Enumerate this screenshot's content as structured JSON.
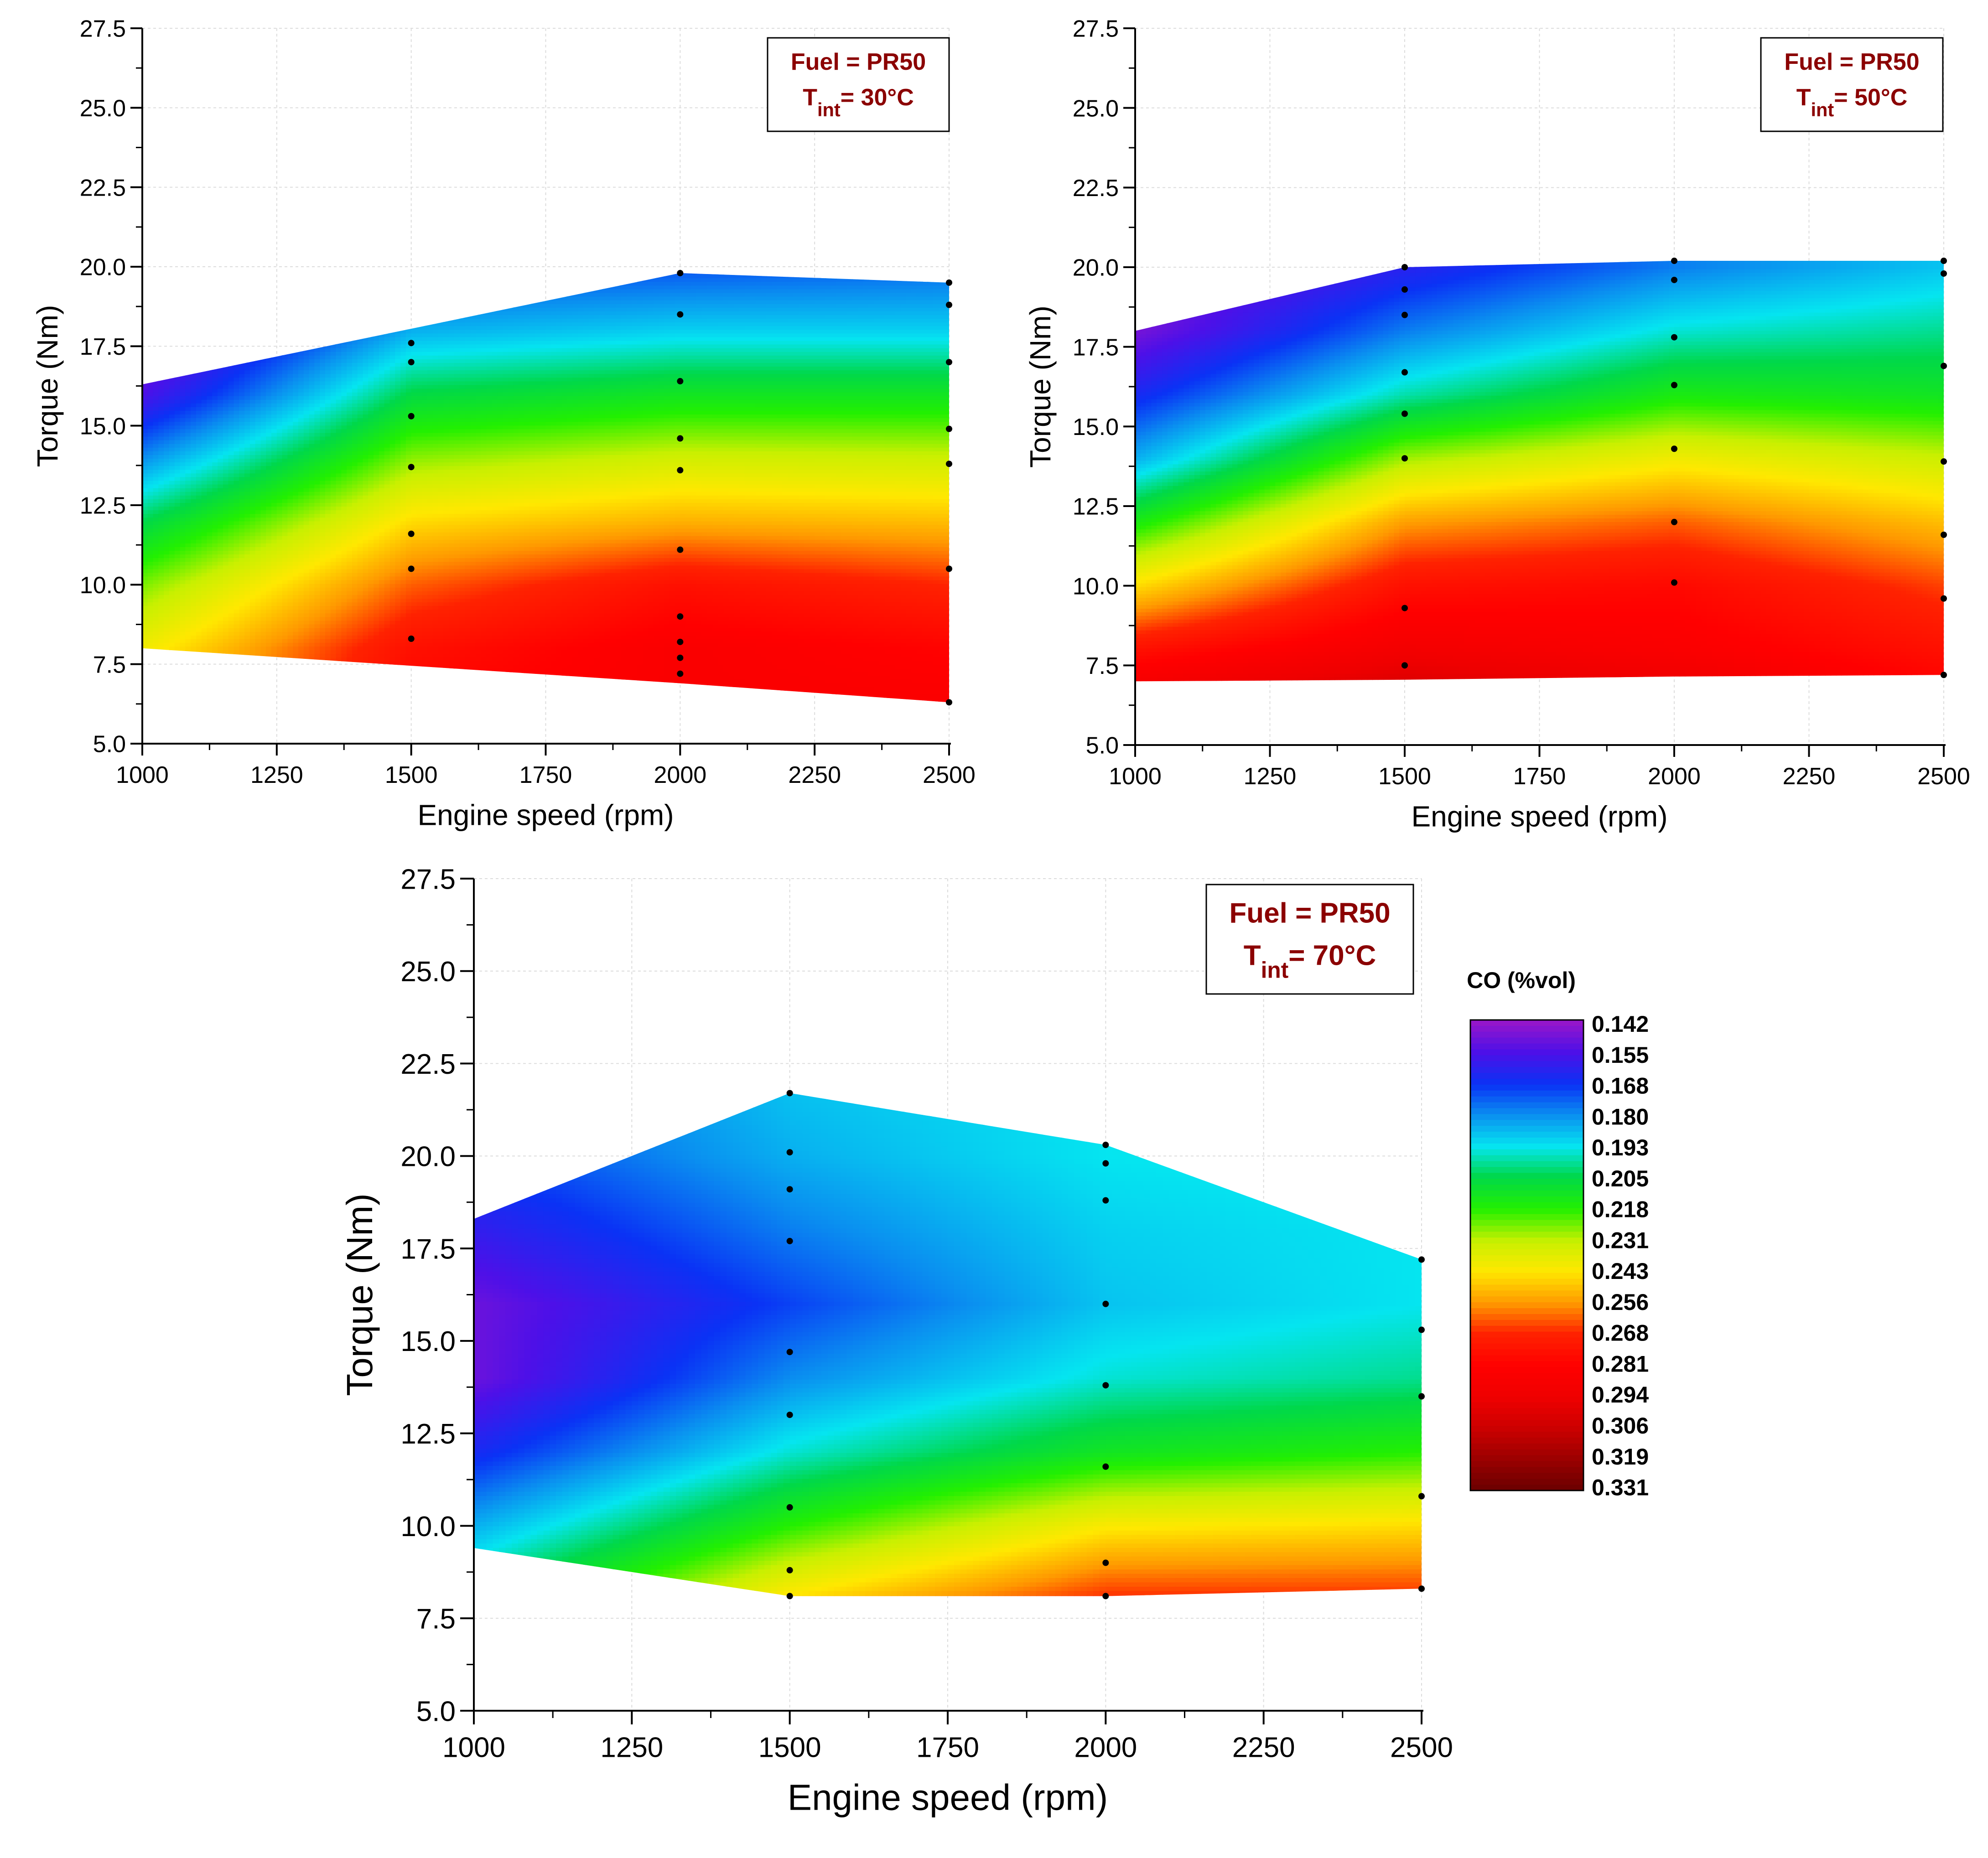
{
  "chart_data": [
    {
      "type": "heatmap",
      "subtype": "filled-contour",
      "xlabel": "Engine speed (rpm)",
      "ylabel": "Torque (Nm)",
      "xlim": [
        1000,
        2500
      ],
      "ylim": [
        5.0,
        27.5
      ],
      "xticks": [
        "1000",
        "1250",
        "1500",
        "1750",
        "2000",
        "2250",
        "2500"
      ],
      "yticks": [
        "5.0",
        "7.5",
        "10.0",
        "12.5",
        "15.0",
        "17.5",
        "20.0",
        "22.5",
        "25.0",
        "27.5"
      ],
      "annotation": {
        "fuel_label": "Fuel = PR50",
        "tint_prefix": "T",
        "tint_sub": "int",
        "tint_value": "= 30°C"
      },
      "boundary": {
        "top": [
          [
            1000,
            16.3
          ],
          [
            2000,
            19.8
          ],
          [
            2500,
            19.5
          ]
        ],
        "bottom": [
          [
            1000,
            8.0
          ],
          [
            2000,
            6.9
          ],
          [
            2500,
            6.3
          ]
        ]
      },
      "points": [
        {
          "x": 1500,
          "y": [
            17.6,
            17.0,
            15.3,
            13.7,
            11.6,
            10.5,
            8.3
          ]
        },
        {
          "x": 2000,
          "y": [
            19.8,
            18.5,
            16.4,
            14.6,
            13.6,
            11.1,
            9.0,
            8.2,
            7.7,
            7.2
          ]
        },
        {
          "x": 2500,
          "y": [
            19.5,
            18.8,
            17.0,
            14.9,
            13.8,
            10.5,
            6.3
          ]
        }
      ],
      "co_grid": {
        "x": [
          1000,
          1500,
          2000,
          2500
        ],
        "y": [
          6,
          8,
          10,
          12,
          14,
          16,
          18,
          20
        ],
        "z": [
          [
            0.245,
            0.28,
            0.285,
            0.285
          ],
          [
            0.24,
            0.275,
            0.285,
            0.28
          ],
          [
            0.225,
            0.262,
            0.275,
            0.268
          ],
          [
            0.205,
            0.245,
            0.252,
            0.25
          ],
          [
            0.18,
            0.226,
            0.233,
            0.232
          ],
          [
            0.155,
            0.206,
            0.212,
            0.212
          ],
          [
            0.142,
            0.185,
            0.19,
            0.19
          ],
          [
            0.142,
            0.17,
            0.172,
            0.175
          ]
        ]
      }
    },
    {
      "type": "heatmap",
      "subtype": "filled-contour",
      "xlabel": "Engine speed (rpm)",
      "ylabel": "Torque (Nm)",
      "xlim": [
        1000,
        2500
      ],
      "ylim": [
        5.0,
        27.5
      ],
      "xticks": [
        "1000",
        "1250",
        "1500",
        "1750",
        "2000",
        "2250",
        "2500"
      ],
      "yticks": [
        "5.0",
        "7.5",
        "10.0",
        "12.5",
        "15.0",
        "17.5",
        "20.0",
        "22.5",
        "25.0",
        "27.5"
      ],
      "annotation": {
        "fuel_label": "Fuel = PR50",
        "tint_prefix": "T",
        "tint_sub": "int",
        "tint_value": "= 50°C"
      },
      "boundary": {
        "top": [
          [
            1000,
            18.0
          ],
          [
            1500,
            20.0
          ],
          [
            2000,
            20.2
          ],
          [
            2500,
            20.2
          ]
        ],
        "bottom": [
          [
            1000,
            7.0
          ],
          [
            1500,
            7.05
          ],
          [
            2000,
            7.15
          ],
          [
            2500,
            7.2
          ]
        ]
      },
      "points": [
        {
          "x": 1500,
          "y": [
            20.0,
            19.3,
            18.5,
            16.7,
            15.4,
            14.0,
            9.3,
            7.5
          ]
        },
        {
          "x": 2000,
          "y": [
            20.2,
            19.6,
            17.8,
            16.3,
            14.3,
            12.0,
            10.1
          ]
        },
        {
          "x": 2500,
          "y": [
            20.2,
            19.8,
            16.9,
            13.9,
            11.6,
            9.6,
            7.2
          ]
        }
      ],
      "co_grid": {
        "x": [
          1000,
          1500,
          2000,
          2500
        ],
        "y": [
          6,
          8,
          10,
          12,
          14,
          16,
          18,
          20
        ],
        "z": [
          [
            0.3,
            0.31,
            0.3,
            0.285
          ],
          [
            0.275,
            0.29,
            0.285,
            0.275
          ],
          [
            0.245,
            0.275,
            0.278,
            0.265
          ],
          [
            0.215,
            0.255,
            0.262,
            0.25
          ],
          [
            0.185,
            0.228,
            0.24,
            0.232
          ],
          [
            0.165,
            0.198,
            0.215,
            0.212
          ],
          [
            0.148,
            0.178,
            0.195,
            0.2
          ],
          [
            0.142,
            0.162,
            0.178,
            0.188
          ]
        ]
      }
    },
    {
      "type": "heatmap",
      "subtype": "filled-contour",
      "xlabel": "Engine speed (rpm)",
      "ylabel": "Torque (Nm)",
      "xlim": [
        1000,
        2500
      ],
      "ylim": [
        5.0,
        27.5
      ],
      "xticks": [
        "1000",
        "1250",
        "1500",
        "1750",
        "2000",
        "2250",
        "2500"
      ],
      "yticks": [
        "5.0",
        "7.5",
        "10.0",
        "12.5",
        "15.0",
        "17.5",
        "20.0",
        "22.5",
        "25.0",
        "27.5"
      ],
      "annotation": {
        "fuel_label": "Fuel = PR50",
        "tint_prefix": "T",
        "tint_sub": "int",
        "tint_value": "= 70°C"
      },
      "boundary": {
        "top": [
          [
            1000,
            18.3
          ],
          [
            1500,
            21.7
          ],
          [
            2000,
            20.3
          ],
          [
            2500,
            17.2
          ]
        ],
        "bottom": [
          [
            1000,
            9.4
          ],
          [
            1500,
            8.1
          ],
          [
            2000,
            8.1
          ],
          [
            2500,
            8.3
          ]
        ]
      },
      "points": [
        {
          "x": 1500,
          "y": [
            21.7,
            20.1,
            19.1,
            17.7,
            14.7,
            13.0,
            10.5,
            8.8,
            8.1
          ]
        },
        {
          "x": 2000,
          "y": [
            20.3,
            19.8,
            18.8,
            16.0,
            13.8,
            11.6,
            9.0,
            8.1
          ]
        },
        {
          "x": 2500,
          "y": [
            17.2,
            15.3,
            13.5,
            10.8,
            8.3
          ]
        }
      ],
      "co_grid": {
        "x": [
          1000,
          1500,
          2000,
          2500
        ],
        "y": [
          8,
          10,
          12,
          14,
          16,
          18,
          20,
          22
        ],
        "z": [
          [
            0.205,
            0.245,
            0.268,
            0.268
          ],
          [
            0.185,
            0.218,
            0.242,
            0.245
          ],
          [
            0.165,
            0.195,
            0.212,
            0.218
          ],
          [
            0.15,
            0.18,
            0.195,
            0.2
          ],
          [
            0.15,
            0.17,
            0.188,
            0.193
          ],
          [
            0.16,
            0.178,
            0.19,
            0.193
          ],
          [
            0.17,
            0.185,
            0.193,
            0.195
          ],
          [
            0.175,
            0.188,
            0.193,
            0.195
          ]
        ]
      }
    }
  ],
  "legend": {
    "title": "CO (%vol)",
    "levels": [
      "0.142",
      "0.155",
      "0.168",
      "0.180",
      "0.193",
      "0.205",
      "0.218",
      "0.231",
      "0.243",
      "0.256",
      "0.268",
      "0.281",
      "0.294",
      "0.306",
      "0.319",
      "0.331"
    ],
    "colors": [
      "#9b17c8",
      "#4d10e8",
      "#0a32f5",
      "#0a8df0",
      "#05e5f0",
      "#00d84a",
      "#22f000",
      "#c8f000",
      "#ffe800",
      "#ff9800",
      "#ff2200",
      "#ff0000",
      "#ee0000",
      "#cc0000",
      "#990000",
      "#6a0000"
    ]
  }
}
